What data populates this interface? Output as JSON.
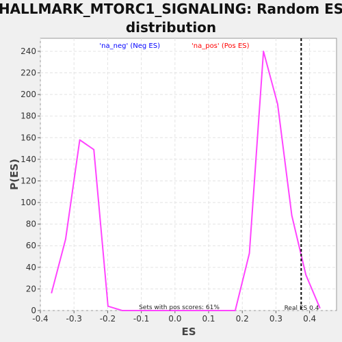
{
  "chart_data": {
    "type": "line",
    "title": [
      "HALLMARK_MTORC1_SIGNALING: Random ES",
      "distribution"
    ],
    "xlabel": "ES",
    "ylabel": "P(ES)",
    "xlim": [
      -0.4,
      0.48
    ],
    "ylim": [
      0,
      252
    ],
    "xticks": [
      "-0.4",
      "-0.3",
      "-0.2",
      "-0.1",
      "0.0",
      "0.1",
      "0.2",
      "0.3",
      "0.4"
    ],
    "xtick_values": [
      -0.4,
      -0.3,
      -0.2,
      -0.1,
      0.0,
      0.1,
      0.2,
      0.3,
      0.4
    ],
    "yticks": [
      "0",
      "20",
      "40",
      "60",
      "80",
      "100",
      "120",
      "140",
      "160",
      "180",
      "200",
      "220",
      "240"
    ],
    "ytick_values": [
      0,
      20,
      40,
      60,
      80,
      100,
      120,
      140,
      160,
      180,
      200,
      220,
      240
    ],
    "grid": true,
    "legend": {
      "placement": "top-center",
      "entries": [
        {
          "text": "'na_neg' (Neg ES)",
          "color": "#0000ff"
        },
        {
          "text": "'na_pos' (Pos ES)",
          "color": "#ff0000"
        }
      ]
    },
    "series": [
      {
        "color": "#ff44ff",
        "x": [
          -0.367,
          -0.325,
          -0.283,
          -0.241,
          -0.199,
          -0.157,
          -0.115,
          -0.073,
          -0.031,
          0.011,
          0.053,
          0.095,
          0.137,
          0.179,
          0.221,
          0.263,
          0.305,
          0.347,
          0.389,
          0.431
        ],
        "y": [
          16,
          66,
          158,
          149,
          4,
          0,
          0,
          0,
          0,
          0,
          0,
          0,
          0,
          0,
          53,
          240,
          191,
          88,
          33,
          2
        ]
      }
    ],
    "reference_line": {
      "x": 0.375,
      "style": "dashed",
      "color": "#000000",
      "label": "Real ES 0.4"
    },
    "annotations": [
      {
        "text": "Sets with pos scores: 61%"
      }
    ]
  }
}
